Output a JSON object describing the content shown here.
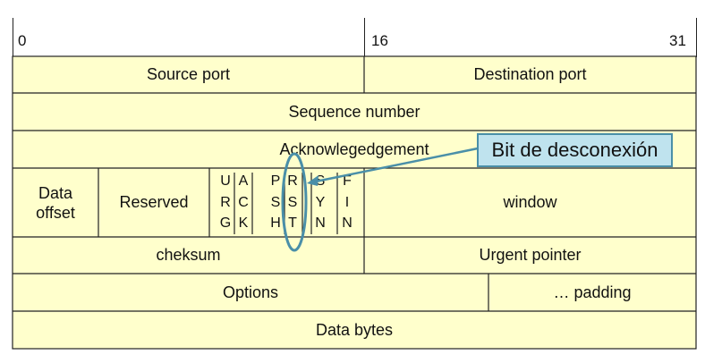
{
  "bit_labels": {
    "start": "0",
    "middle": "16",
    "end": "31"
  },
  "rows": {
    "source_port": "Source port",
    "destination_port": "Destination port",
    "sequence_number": "Sequence number",
    "acknowledgement": "Acknowlegedgement",
    "data_offset": "Data offset",
    "reserved": "Reserved",
    "window": "window",
    "checksum": "cheksum",
    "urgent_pointer": "Urgent pointer",
    "options": "Options",
    "padding": "… padding",
    "data_bytes": "Data bytes"
  },
  "flags": [
    {
      "letters": [
        "U",
        "R",
        "G"
      ]
    },
    {
      "letters": [
        "A",
        "C",
        "K"
      ]
    },
    {
      "letters": [
        "P",
        "S",
        "H"
      ]
    },
    {
      "letters": [
        "R",
        "S",
        "T"
      ]
    },
    {
      "letters": [
        "S",
        "Y",
        "N"
      ]
    },
    {
      "letters": [
        "F",
        "I",
        "N"
      ]
    }
  ],
  "callout": {
    "text": "Bit de desconexión"
  },
  "colors": {
    "cell_fill": "#ffffcc",
    "callout_fill": "#bfe3ee",
    "highlight": "#4a8fa8"
  }
}
